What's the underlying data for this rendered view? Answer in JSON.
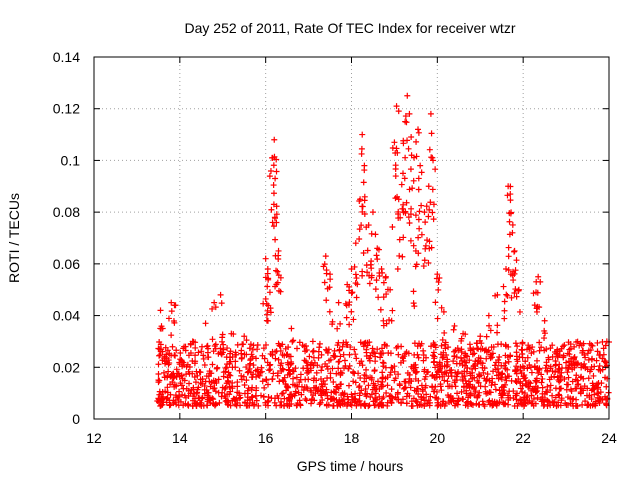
{
  "chart_data": {
    "type": "scatter",
    "title": "Day 252 of 2011, Rate Of TEC Index for receiver wtzr",
    "xlabel": "GPS time / hours",
    "ylabel": "ROTI / TECUs",
    "xlim": [
      12,
      24
    ],
    "ylim": [
      0,
      0.14
    ],
    "x_ticks": [
      12,
      14,
      16,
      18,
      20,
      22,
      24
    ],
    "y_ticks": [
      0,
      0.02,
      0.04,
      0.06,
      0.08,
      0.1,
      0.12,
      0.14
    ],
    "grid": true,
    "marker": "+",
    "color": "#ff0000",
    "series": [
      {
        "name": "ROTI",
        "points": [
          [
            13.5,
            0.008
          ],
          [
            13.55,
            0.042
          ],
          [
            13.6,
            0.035
          ],
          [
            13.7,
            0.022
          ],
          [
            13.8,
            0.045
          ],
          [
            13.9,
            0.044
          ],
          [
            14.1,
            0.028
          ],
          [
            14.3,
            0.03
          ],
          [
            14.6,
            0.037
          ],
          [
            14.8,
            0.045
          ],
          [
            14.95,
            0.048
          ],
          [
            15.2,
            0.033
          ],
          [
            15.5,
            0.032
          ],
          [
            15.8,
            0.027
          ],
          [
            16.0,
            0.062
          ],
          [
            16.05,
            0.058
          ],
          [
            16.1,
            0.049
          ],
          [
            16.15,
            0.101
          ],
          [
            16.2,
            0.108
          ],
          [
            16.22,
            0.093
          ],
          [
            16.25,
            0.076
          ],
          [
            16.3,
            0.065
          ],
          [
            16.6,
            0.035
          ],
          [
            16.9,
            0.028
          ],
          [
            17.1,
            0.03
          ],
          [
            17.4,
            0.063
          ],
          [
            17.5,
            0.056
          ],
          [
            17.7,
            0.045
          ],
          [
            17.9,
            0.052
          ],
          [
            18.0,
            0.058
          ],
          [
            18.1,
            0.068
          ],
          [
            18.2,
            0.085
          ],
          [
            18.25,
            0.11
          ],
          [
            18.3,
            0.098
          ],
          [
            18.4,
            0.075
          ],
          [
            18.5,
            0.08
          ],
          [
            18.6,
            0.066
          ],
          [
            18.7,
            0.058
          ],
          [
            18.8,
            0.055
          ],
          [
            18.9,
            0.05
          ],
          [
            19.0,
            0.107
          ],
          [
            19.05,
            0.121
          ],
          [
            19.1,
            0.085
          ],
          [
            19.2,
            0.095
          ],
          [
            19.25,
            0.115
          ],
          [
            19.3,
            0.125
          ],
          [
            19.35,
            0.118
          ],
          [
            19.4,
            0.102
          ],
          [
            19.5,
            0.065
          ],
          [
            19.55,
            0.112
          ],
          [
            19.6,
            0.098
          ],
          [
            19.7,
            0.08
          ],
          [
            19.8,
            0.09
          ],
          [
            19.85,
            0.118
          ],
          [
            19.9,
            0.1
          ],
          [
            20.0,
            0.056
          ],
          [
            20.1,
            0.043
          ],
          [
            20.4,
            0.036
          ],
          [
            20.6,
            0.033
          ],
          [
            21.0,
            0.032
          ],
          [
            21.2,
            0.04
          ],
          [
            21.4,
            0.048
          ],
          [
            21.6,
            0.058
          ],
          [
            21.65,
            0.09
          ],
          [
            21.7,
            0.087
          ],
          [
            21.75,
            0.072
          ],
          [
            21.8,
            0.065
          ],
          [
            21.9,
            0.05
          ],
          [
            22.3,
            0.049
          ],
          [
            22.35,
            0.055
          ],
          [
            22.5,
            0.038
          ],
          [
            22.8,
            0.026
          ],
          [
            23.2,
            0.024
          ],
          [
            23.6,
            0.023
          ],
          [
            23.95,
            0.03
          ]
        ],
        "baseline_band": {
          "x_range": [
            13.5,
            24
          ],
          "y_range": [
            0.005,
            0.03
          ]
        }
      }
    ]
  }
}
